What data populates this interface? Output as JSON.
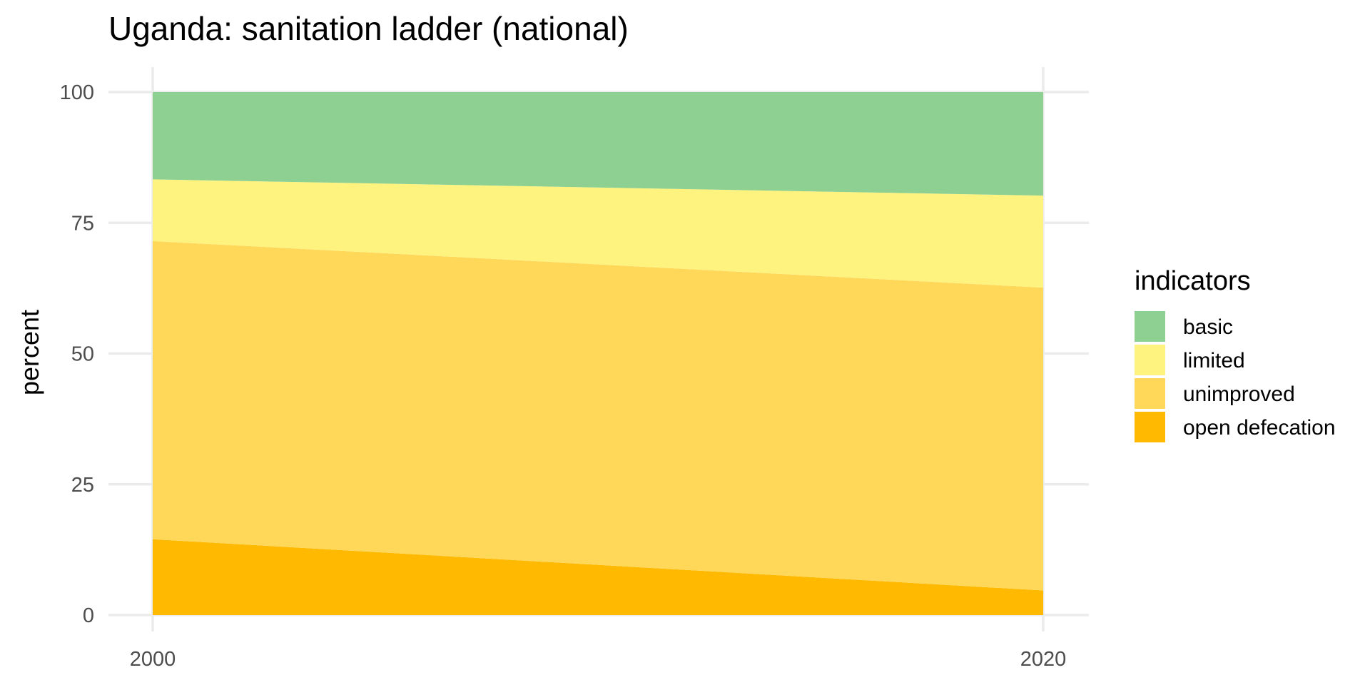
{
  "chart_data": {
    "type": "area",
    "stacked": true,
    "title": "Uganda: sanitation ladder (national)",
    "xlabel": "",
    "ylabel": "percent",
    "x": [
      2000,
      2020
    ],
    "xlim": [
      2000,
      2020
    ],
    "ylim": [
      0,
      100
    ],
    "x_ticks": [
      2000,
      2020
    ],
    "y_ticks": [
      0,
      25,
      50,
      75,
      100
    ],
    "x_tick_labels": [
      "2000",
      "2020"
    ],
    "y_tick_labels": [
      "0",
      "25",
      "50",
      "75",
      "100"
    ],
    "grid": true,
    "legend": {
      "title": "indicators",
      "position": "right"
    },
    "series": [
      {
        "name": "open defecation",
        "values": [
          14.5,
          4.7
        ],
        "color": "#FFB900"
      },
      {
        "name": "unimproved",
        "values": [
          57.0,
          57.9
        ],
        "color": "#FFD85A"
      },
      {
        "name": "limited",
        "values": [
          11.8,
          17.6
        ],
        "color": "#FFF380"
      },
      {
        "name": "basic",
        "values": [
          16.7,
          19.8
        ],
        "color": "#8DD092"
      }
    ],
    "legend_order": [
      "basic",
      "limited",
      "unimproved",
      "open defecation"
    ]
  }
}
